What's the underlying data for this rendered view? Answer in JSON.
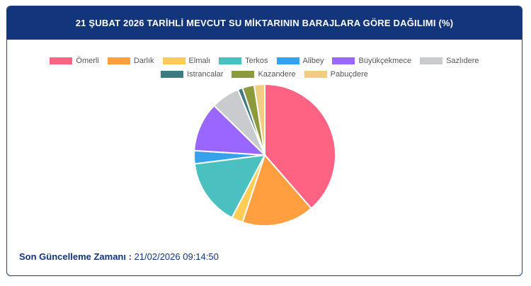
{
  "header": {
    "title": "21 ŞUBAT 2026 TARİHLİ MEVCUT SU MİKTARININ BARAJLARA GÖRE DAĞILIMI (%)"
  },
  "chart_data": {
    "type": "pie",
    "title": "21 ŞUBAT 2026 TARİHLİ MEVCUT SU MİKTARININ BARAJLARA GÖRE DAĞILIMI (%)",
    "legend_position": "top",
    "series": [
      {
        "name": "Ömerli",
        "value": 38.6,
        "color": "#ff6384"
      },
      {
        "name": "Darlık",
        "value": 16.5,
        "color": "#ff9f40"
      },
      {
        "name": "Elmalı",
        "value": 2.6,
        "color": "#ffcd56"
      },
      {
        "name": "Terkos",
        "value": 15.3,
        "color": "#4bc0c0"
      },
      {
        "name": "Alibey",
        "value": 3.0,
        "color": "#36a2eb"
      },
      {
        "name": "Büyükçekmece",
        "value": 11.3,
        "color": "#9966ff"
      },
      {
        "name": "Sazlıdere",
        "value": 6.5,
        "color": "#c9cbcf"
      },
      {
        "name": "Istrancalar",
        "value": 1.1,
        "color": "#3e7a82"
      },
      {
        "name": "Kazandere",
        "value": 2.7,
        "color": "#8c9a3c"
      },
      {
        "name": "Pabuçdere",
        "value": 2.4,
        "color": "#f0cd80"
      }
    ]
  },
  "footer": {
    "label": "Son Güncelleme Zamanı :",
    "value": "21/02/2026 09:14:50"
  }
}
